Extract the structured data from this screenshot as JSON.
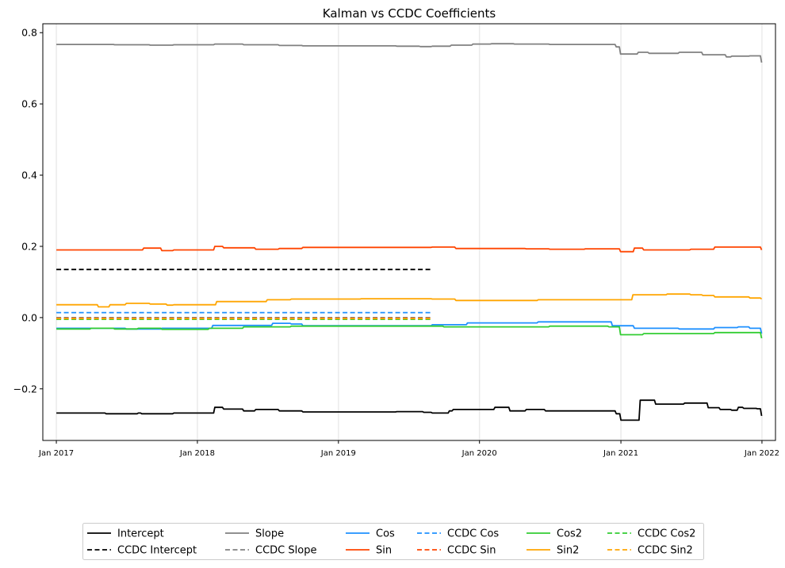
{
  "chart_data": {
    "type": "line",
    "title": "Kalman vs CCDC Coefficients",
    "xlabel": "",
    "ylabel": "",
    "xlim": [
      "2016-11-27",
      "2022-02-05"
    ],
    "ylim": [
      -0.345,
      0.825
    ],
    "y_ticks": [
      -0.2,
      0.0,
      0.2,
      0.4,
      0.6,
      0.8
    ],
    "y_tick_labels": [
      "−0.2",
      "0.0",
      "0.2",
      "0.4",
      "0.6",
      "0.8"
    ],
    "x_ticks": [
      "2017-01-01",
      "2018-01-01",
      "2019-01-01",
      "2020-01-01",
      "2021-01-01",
      "2022-01-01"
    ],
    "x_tick_labels": [
      "Jan 2017",
      "Jan 2018",
      "Jan 2019",
      "Jan 2020",
      "Jan 2021",
      "Jan 2022"
    ],
    "grid": "vertical",
    "legend_placement": "bottom-center",
    "legend_columns": 6,
    "series": [
      {
        "name": "Intercept",
        "color": "#000000",
        "dash": "solid",
        "x": [
          "2017-01-01",
          "2017-05-01",
          "2017-05-10",
          "2017-08-01",
          "2017-08-10",
          "2017-11-01",
          "2018-02-10",
          "2018-02-15",
          "2018-03-10",
          "2018-05-01",
          "2018-06-01",
          "2018-08-01",
          "2018-10-01",
          "2019-03-01",
          "2019-06-01",
          "2019-08-10",
          "2019-09-01",
          "2019-10-15",
          "2019-10-25",
          "2020-02-01",
          "2020-02-10",
          "2020-03-20",
          "2020-05-01",
          "2020-06-20",
          "2020-09-01",
          "2020-11-20",
          "2020-12-20",
          "2021-01-01",
          "2021-02-01",
          "2021-02-20",
          "2021-04-01",
          "2021-06-15",
          "2021-08-15",
          "2021-09-15",
          "2021-10-15",
          "2021-11-01",
          "2021-11-15",
          "2021-12-20",
          "2021-12-31"
        ],
        "y": [
          -0.268,
          -0.268,
          -0.27,
          -0.268,
          -0.27,
          -0.268,
          -0.268,
          -0.252,
          -0.257,
          -0.262,
          -0.258,
          -0.262,
          -0.265,
          -0.265,
          -0.264,
          -0.266,
          -0.268,
          -0.262,
          -0.258,
          -0.258,
          -0.252,
          -0.262,
          -0.258,
          -0.262,
          -0.262,
          -0.262,
          -0.27,
          -0.288,
          -0.288,
          -0.232,
          -0.243,
          -0.24,
          -0.253,
          -0.258,
          -0.26,
          -0.252,
          -0.255,
          -0.256,
          -0.276
        ]
      },
      {
        "name": "CCDC Intercept",
        "color": "#000000",
        "dash": "dashed",
        "x": [
          "2017-01-01",
          "2019-08-28"
        ],
        "y": [
          0.135,
          0.135
        ]
      },
      {
        "name": "Slope",
        "color": "#808080",
        "dash": "solid",
        "x": [
          "2017-01-01",
          "2017-06-01",
          "2017-09-01",
          "2017-11-01",
          "2018-02-15",
          "2018-05-01",
          "2018-08-01",
          "2018-10-01",
          "2019-03-01",
          "2019-06-01",
          "2019-08-01",
          "2019-09-01",
          "2019-10-20",
          "2019-12-15",
          "2020-02-01",
          "2020-04-01",
          "2020-07-01",
          "2020-10-01",
          "2020-12-01",
          "2020-12-20",
          "2020-12-31",
          "2021-02-15",
          "2021-03-15",
          "2021-06-01",
          "2021-08-01",
          "2021-10-01",
          "2021-10-15",
          "2021-12-01",
          "2021-12-31"
        ],
        "y": [
          0.767,
          0.766,
          0.765,
          0.766,
          0.768,
          0.766,
          0.764,
          0.763,
          0.763,
          0.762,
          0.761,
          0.762,
          0.765,
          0.768,
          0.769,
          0.768,
          0.767,
          0.767,
          0.767,
          0.76,
          0.74,
          0.745,
          0.742,
          0.745,
          0.738,
          0.732,
          0.734,
          0.735,
          0.716
        ]
      },
      {
        "name": "CCDC Slope",
        "color": "#808080",
        "dash": "dashed",
        "x": [
          "2017-01-01",
          "2019-08-28"
        ],
        "y": [
          0.0,
          0.0
        ]
      },
      {
        "name": "Cos",
        "color": "#1e90ff",
        "dash": "solid",
        "x": [
          "2017-01-01",
          "2017-05-01",
          "2017-07-01",
          "2017-10-01",
          "2018-02-01",
          "2018-02-10",
          "2018-07-01",
          "2018-07-15",
          "2018-09-01",
          "2018-10-01",
          "2019-06-01",
          "2019-09-01",
          "2019-12-01",
          "2020-04-01",
          "2020-06-01",
          "2020-09-01",
          "2020-11-01",
          "2020-11-25",
          "2020-12-10",
          "2021-02-05",
          "2021-06-01",
          "2021-09-01",
          "2021-10-01",
          "2021-11-01",
          "2021-12-01",
          "2021-12-31"
        ],
        "y": [
          -0.03,
          -0.03,
          -0.032,
          -0.03,
          -0.03,
          -0.022,
          -0.022,
          -0.016,
          -0.018,
          -0.023,
          -0.023,
          -0.02,
          -0.015,
          -0.015,
          -0.012,
          -0.012,
          -0.012,
          -0.012,
          -0.023,
          -0.03,
          -0.032,
          -0.028,
          -0.028,
          -0.026,
          -0.03,
          -0.045
        ]
      },
      {
        "name": "Sin",
        "color": "#ff4500",
        "dash": "solid",
        "x": [
          "2017-01-01",
          "2017-04-01",
          "2017-07-01",
          "2017-08-15",
          "2017-09-15",
          "2017-10-01",
          "2017-11-01",
          "2018-02-10",
          "2018-02-15",
          "2018-03-10",
          "2018-06-01",
          "2018-08-01",
          "2018-10-01",
          "2019-08-01",
          "2019-09-01",
          "2019-11-01",
          "2020-05-01",
          "2020-07-01",
          "2020-10-01",
          "2020-12-15",
          "2020-12-31",
          "2021-02-05",
          "2021-03-01",
          "2021-07-01",
          "2021-09-01",
          "2021-12-01",
          "2021-12-31"
        ],
        "y": [
          0.19,
          0.19,
          0.19,
          0.195,
          0.195,
          0.188,
          0.19,
          0.19,
          0.2,
          0.196,
          0.192,
          0.194,
          0.197,
          0.197,
          0.198,
          0.194,
          0.193,
          0.192,
          0.193,
          0.193,
          0.185,
          0.195,
          0.19,
          0.192,
          0.198,
          0.198,
          0.19
        ]
      },
      {
        "name": "CCDC Cos",
        "color": "#1e90ff",
        "dash": "dashed",
        "x": [
          "2017-01-01",
          "2019-08-28"
        ],
        "y": [
          0.014,
          0.014
        ]
      },
      {
        "name": "CCDC Sin",
        "color": "#ff4500",
        "dash": "dashed",
        "x": [
          "2017-01-01",
          "2019-08-28"
        ],
        "y": [
          -0.002,
          -0.002
        ]
      },
      {
        "name": "Cos2",
        "color": "#32cd32",
        "dash": "solid",
        "x": [
          "2017-01-01",
          "2017-03-01",
          "2017-04-01",
          "2017-06-01",
          "2017-08-01",
          "2017-10-01",
          "2018-02-01",
          "2018-05-01",
          "2018-09-01",
          "2018-12-01",
          "2019-06-01",
          "2019-09-01",
          "2019-10-01",
          "2020-03-01",
          "2020-07-01",
          "2020-09-01",
          "2020-12-01",
          "2020-12-31",
          "2021-02-01",
          "2021-03-01",
          "2021-09-01",
          "2021-12-15",
          "2021-12-31"
        ],
        "y": [
          -0.032,
          -0.032,
          -0.03,
          -0.032,
          -0.03,
          -0.033,
          -0.03,
          -0.026,
          -0.024,
          -0.024,
          -0.024,
          -0.024,
          -0.026,
          -0.026,
          -0.024,
          -0.024,
          -0.026,
          -0.048,
          -0.048,
          -0.045,
          -0.042,
          -0.042,
          -0.058
        ]
      },
      {
        "name": "Sin2",
        "color": "#ffa500",
        "dash": "solid",
        "x": [
          "2017-01-01",
          "2017-04-01",
          "2017-04-20",
          "2017-05-20",
          "2017-07-01",
          "2017-09-01",
          "2017-10-15",
          "2017-11-01",
          "2018-02-10",
          "2018-02-20",
          "2018-05-01",
          "2018-07-01",
          "2018-09-01",
          "2018-10-01",
          "2019-03-01",
          "2019-06-01",
          "2019-08-01",
          "2019-09-01",
          "2019-11-01",
          "2020-04-01",
          "2020-06-01",
          "2020-10-01",
          "2020-11-01",
          "2020-12-31",
          "2021-02-01",
          "2021-05-01",
          "2021-07-01",
          "2021-08-01",
          "2021-09-01",
          "2021-11-01",
          "2021-12-01",
          "2021-12-31"
        ],
        "y": [
          0.036,
          0.036,
          0.03,
          0.036,
          0.04,
          0.038,
          0.035,
          0.036,
          0.036,
          0.045,
          0.045,
          0.05,
          0.052,
          0.052,
          0.053,
          0.053,
          0.053,
          0.052,
          0.048,
          0.048,
          0.05,
          0.05,
          0.05,
          0.05,
          0.064,
          0.066,
          0.064,
          0.062,
          0.058,
          0.058,
          0.055,
          0.052
        ]
      },
      {
        "name": "CCDC Cos2",
        "color": "#32cd32",
        "dash": "dashed",
        "x": [
          "2017-01-01",
          "2019-08-28"
        ],
        "y": [
          -0.005,
          -0.005
        ]
      },
      {
        "name": "CCDC Sin2",
        "color": "#ffa500",
        "dash": "dashed",
        "x": [
          "2017-01-01",
          "2019-08-28"
        ],
        "y": [
          -0.003,
          -0.003
        ]
      }
    ]
  }
}
